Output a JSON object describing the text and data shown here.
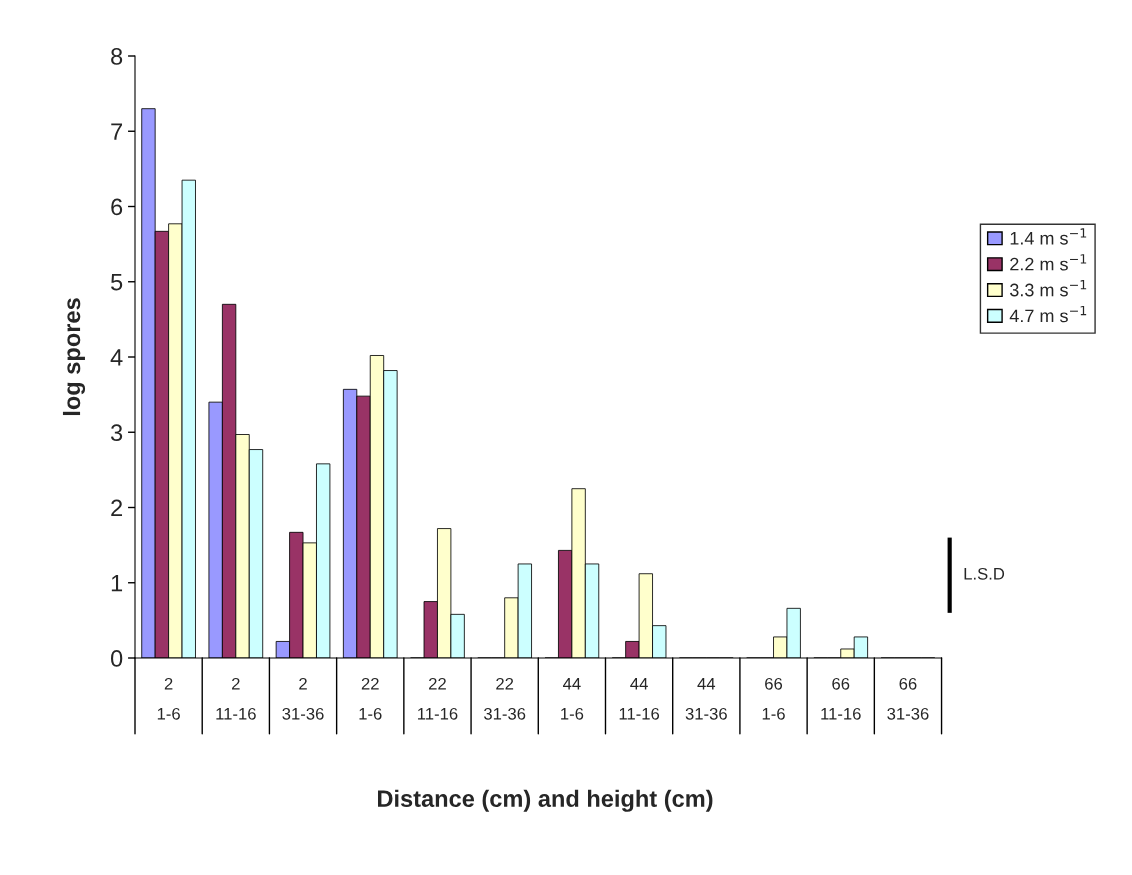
{
  "chart_data": {
    "type": "bar",
    "xlabel": "Distance (cm) and height (cm)",
    "ylabel": "log spores",
    "categories": [
      "2\n1-6",
      "2\n11-16",
      "2\n31-36",
      "22\n1-6",
      "22\n11-16",
      "22\n31-36",
      "44\n1-6",
      "44\n11-16",
      "44\n31-36",
      "66\n1-6",
      "66\n11-16",
      "66\n31-36"
    ],
    "series": [
      {
        "name": "1.4 m s$^{−1}$",
        "color": "#9999ff",
        "values": [
          7.3,
          3.4,
          0.22,
          3.57,
          0,
          0,
          0,
          0,
          0,
          0,
          0,
          0
        ]
      },
      {
        "name": "2.2 m s$^{−1}$",
        "color": "#993366",
        "values": [
          5.67,
          4.7,
          1.67,
          3.48,
          0.75,
          0,
          1.43,
          0.22,
          0,
          0,
          0,
          0
        ]
      },
      {
        "name": "3.3 m s$^{−1}$",
        "color": "#ffffcc",
        "values": [
          5.77,
          2.97,
          1.53,
          4.02,
          1.72,
          0.8,
          2.25,
          1.12,
          0,
          0.28,
          0.12,
          0
        ]
      },
      {
        "name": "4.7 m s$^{−1}$",
        "color": "#ccffff",
        "values": [
          6.35,
          2.77,
          2.58,
          3.82,
          0.58,
          1.25,
          1.25,
          0.43,
          0,
          0.66,
          0.28,
          0
        ]
      }
    ],
    "ylim": [
      0,
      8
    ],
    "yticks": [
      0,
      1,
      2,
      3,
      4,
      5,
      6,
      7,
      8
    ],
    "annotations": [
      "L.S.D"
    ],
    "grid": false,
    "legend": "right"
  }
}
